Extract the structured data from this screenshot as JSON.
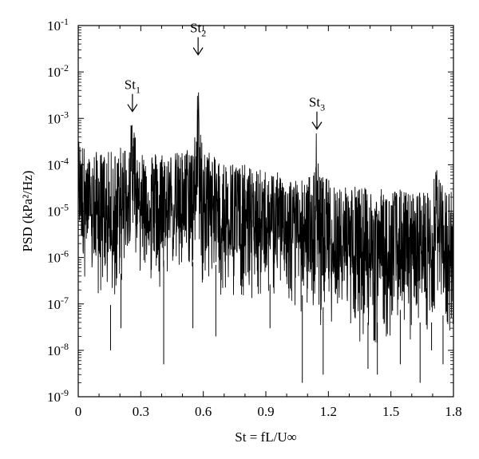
{
  "chart_data": {
    "type": "line",
    "xlabel": "St = fL/U∞",
    "ylabel": "PSD (kPa²/Hz)",
    "x_range": [
      0,
      1.8
    ],
    "y_range": [
      1e-09,
      0.1
    ],
    "y_scale": "log",
    "grid": false,
    "x_ticks": [
      0,
      0.3,
      0.6,
      0.9,
      1.2,
      1.5,
      1.8
    ],
    "x_tick_labels": [
      "0",
      "0.3",
      "0.6",
      "0.9",
      "1.2",
      "1.5",
      "1.8"
    ],
    "y_ticks": [
      1e-09,
      1e-08,
      1e-07,
      1e-06,
      1e-05,
      0.0001,
      0.001,
      0.01,
      0.1
    ],
    "y_tick_exponents": [
      "-9",
      "-8",
      "-7",
      "-6",
      "-5",
      "-4",
      "-3",
      "-2",
      "-1"
    ],
    "y_tick_base": "10",
    "line_color": "#000000",
    "series": [
      {
        "envelope": {
          "x": [
            0.0,
            0.02,
            0.05,
            0.08,
            0.12,
            0.16,
            0.2,
            0.23,
            0.25,
            0.26,
            0.27,
            0.28,
            0.3,
            0.35,
            0.4,
            0.45,
            0.5,
            0.55,
            0.57,
            0.575,
            0.58,
            0.59,
            0.6,
            0.65,
            0.7,
            0.75,
            0.8,
            0.85,
            0.9,
            0.95,
            1.0,
            1.05,
            1.1,
            1.13,
            1.14,
            1.145,
            1.15,
            1.17,
            1.2,
            1.25,
            1.3,
            1.35,
            1.4,
            1.45,
            1.5,
            1.55,
            1.6,
            1.65,
            1.7,
            1.72,
            1.73,
            1.74,
            1.76,
            1.8
          ],
          "y_max": [
            0.0004,
            0.0003,
            0.00015,
            0.0002,
            0.00018,
            0.0002,
            0.00025,
            0.0003,
            0.0006,
            0.0012,
            0.0006,
            0.0003,
            0.0002,
            0.0002,
            0.0002,
            0.00018,
            0.0002,
            0.0003,
            0.001,
            0.02,
            0.001,
            0.0004,
            0.0003,
            0.00015,
            0.00012,
            0.00012,
            0.0001,
            8e-05,
            8e-05,
            7e-05,
            6e-05,
            5e-05,
            5e-05,
            0.0001,
            0.0005,
            0.0005,
            0.00012,
            6e-05,
            5e-05,
            4e-05,
            4e-05,
            3.5e-05,
            3e-05,
            3e-05,
            3e-05,
            3e-05,
            2.5e-05,
            3e-05,
            3e-05,
            0.00015,
            0.00015,
            4e-05,
            3e-05,
            3e-05
          ],
          "y_min": [
            2e-06,
            3e-07,
            2e-07,
            5e-08,
            8e-08,
            2e-08,
            1e-07,
            2e-07,
            2e-06,
            3e-06,
            2e-06,
            3e-07,
            3e-07,
            2e-07,
            2e-07,
            3e-07,
            2e-07,
            2e-07,
            2e-06,
            1e-05,
            2e-06,
            2e-07,
            2e-07,
            2e-07,
            1e-07,
            1e-07,
            8e-08,
            1e-07,
            5e-08,
            1e-07,
            5e-08,
            5e-08,
            3e-08,
            3e-08,
            1e-07,
            1e-07,
            3e-08,
            2e-08,
            3e-08,
            3e-08,
            2e-08,
            1e-08,
            1e-08,
            1e-08,
            1e-08,
            2e-08,
            1e-08,
            1e-08,
            1e-08,
            5e-08,
            5e-08,
            2e-08,
            1e-08,
            1e-08
          ]
        },
        "dropouts": [
          {
            "x": 0.155,
            "y": 1e-08
          },
          {
            "x": 0.205,
            "y": 3e-08
          },
          {
            "x": 0.41,
            "y": 5e-09
          },
          {
            "x": 0.55,
            "y": 3e-08
          },
          {
            "x": 0.66,
            "y": 2e-08
          },
          {
            "x": 0.92,
            "y": 3e-08
          },
          {
            "x": 1.075,
            "y": 2e-09
          },
          {
            "x": 1.175,
            "y": 3e-09
          },
          {
            "x": 1.39,
            "y": 4e-09
          },
          {
            "x": 1.435,
            "y": 3e-09
          },
          {
            "x": 1.545,
            "y": 5e-09
          },
          {
            "x": 1.64,
            "y": 2e-09
          },
          {
            "x": 1.695,
            "y": 1e-08
          },
          {
            "x": 1.75,
            "y": 5e-09
          }
        ]
      }
    ],
    "annotations": [
      {
        "text": "St",
        "sub": "1",
        "x": 0.26,
        "y": 0.0012
      },
      {
        "text": "St",
        "sub": "2",
        "x": 0.575,
        "y": 0.02
      },
      {
        "text": "St",
        "sub": "3",
        "x": 1.145,
        "y": 0.0005
      }
    ]
  }
}
